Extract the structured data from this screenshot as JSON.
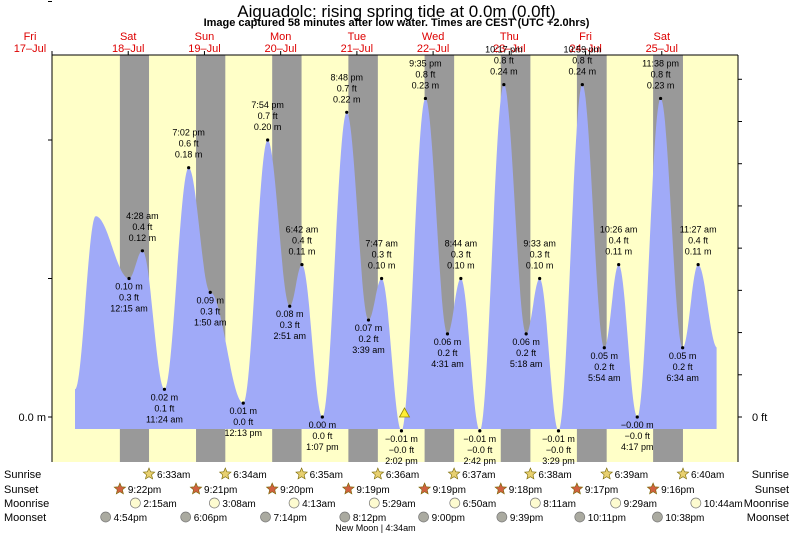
{
  "title": "Aiguadolc: rising  spring tide at 0.0m (0.0ft)",
  "subtitle": "Image captured 58 minutes after low water. Times are CEST (UTC +2.0hrs)",
  "colors": {
    "day": "#ffffc8",
    "night": "#999999",
    "water": "#a0aaf8",
    "day_label": "#dd0000",
    "sun_star": "#e8d070",
    "set_star": "#d06040"
  },
  "left_axis_label": "0.0 m",
  "right_axis_label": "0 ft",
  "days": [
    {
      "name": "Fri",
      "date": "17–Jul"
    },
    {
      "name": "Sat",
      "date": "18–Jul"
    },
    {
      "name": "Sun",
      "date": "19–Jul"
    },
    {
      "name": "Mon",
      "date": "20–Jul"
    },
    {
      "name": "Tue",
      "date": "21–Jul"
    },
    {
      "name": "Wed",
      "date": "22–Jul"
    },
    {
      "name": "Thu",
      "date": "23–Jul"
    },
    {
      "name": "Fri",
      "date": "24–Jul"
    },
    {
      "name": "Sat",
      "date": "25–Jul"
    }
  ],
  "chart_data": {
    "type": "area",
    "units": "m",
    "ylim": [
      -0.02,
      0.33
    ],
    "xlim_hours": [
      0,
      216
    ],
    "x_start": "17-Jul 00:00",
    "tides": [
      {
        "t": 24.25,
        "h": 0.1,
        "time": "12:15 am",
        "m": "0.10 m",
        "ft": "0.3 ft",
        "pos": "below"
      },
      {
        "t": 28.47,
        "h": 0.12,
        "time": "4:28 am",
        "m": "0.12 m",
        "ft": "0.4 ft",
        "pos": "above"
      },
      {
        "t": 35.4,
        "h": 0.02,
        "time": "11:24 am",
        "m": "0.02 m",
        "ft": "0.1 ft",
        "pos": "below"
      },
      {
        "t": 43.03,
        "h": 0.18,
        "time": "7:02 pm",
        "m": "0.18 m",
        "ft": "0.6 ft",
        "pos": "above"
      },
      {
        "t": 49.83,
        "h": 0.09,
        "time": "1:50 am",
        "m": "0.09 m",
        "ft": "0.3 ft",
        "pos": "below"
      },
      {
        "t": 60.22,
        "h": 0.01,
        "time": "12:13 pm",
        "m": "0.01 m",
        "ft": "0.0 ft",
        "pos": "below"
      },
      {
        "t": 67.9,
        "h": 0.2,
        "time": "7:54 pm",
        "m": "0.20 m",
        "ft": "0.7 ft",
        "pos": "above"
      },
      {
        "t": 74.85,
        "h": 0.08,
        "time": "2:51 am",
        "m": "0.08 m",
        "ft": "0.3 ft",
        "pos": "below"
      },
      {
        "t": 78.7,
        "h": 0.11,
        "time": "6:42 am",
        "m": "0.11 m",
        "ft": "0.4 ft",
        "pos": "above"
      },
      {
        "t": 85.12,
        "h": 0.0,
        "time": "1:07 pm",
        "m": "0.00 m",
        "ft": "0.0 ft",
        "pos": "below"
      },
      {
        "t": 92.8,
        "h": 0.22,
        "time": "8:48 pm",
        "m": "0.22 m",
        "ft": "0.7 ft",
        "pos": "above"
      },
      {
        "t": 99.65,
        "h": 0.07,
        "time": "3:39 am",
        "m": "0.07 m",
        "ft": "0.2 ft",
        "pos": "below"
      },
      {
        "t": 103.78,
        "h": 0.1,
        "time": "7:47 am",
        "m": "0.10 m",
        "ft": "0.3 ft",
        "pos": "above"
      },
      {
        "t": 110.03,
        "h": -0.01,
        "time": "2:02 pm",
        "m": "−0.01 m",
        "ft": "−0.0 ft",
        "pos": "below"
      },
      {
        "t": 117.58,
        "h": 0.23,
        "time": "9:35 pm",
        "m": "0.23 m",
        "ft": "0.8 ft",
        "pos": "above"
      },
      {
        "t": 124.52,
        "h": 0.06,
        "time": "4:31 am",
        "m": "0.06 m",
        "ft": "0.2 ft",
        "pos": "below"
      },
      {
        "t": 128.73,
        "h": 0.1,
        "time": "8:44 am",
        "m": "0.10 m",
        "ft": "0.3 ft",
        "pos": "above"
      },
      {
        "t": 134.7,
        "h": -0.01,
        "time": "2:42 pm",
        "m": "−0.01 m",
        "ft": "−0.0 ft",
        "pos": "below"
      },
      {
        "t": 142.28,
        "h": 0.24,
        "time": "10:17 pm",
        "m": "0.24 m",
        "ft": "0.8 ft",
        "pos": "above"
      },
      {
        "t": 149.3,
        "h": 0.06,
        "time": "5:18 am",
        "m": "0.06 m",
        "ft": "0.2 ft",
        "pos": "below"
      },
      {
        "t": 153.55,
        "h": 0.1,
        "time": "9:33 am",
        "m": "0.10 m",
        "ft": "0.3 ft",
        "pos": "above"
      },
      {
        "t": 159.48,
        "h": -0.01,
        "time": "3:29 pm",
        "m": "−0.01 m",
        "ft": "−0.0 ft",
        "pos": "below"
      },
      {
        "t": 166.98,
        "h": 0.24,
        "time": "10:59 pm",
        "m": "0.24 m",
        "ft": "0.8 ft",
        "pos": "above"
      },
      {
        "t": 173.9,
        "h": 0.05,
        "time": "5:54 am",
        "m": "0.05 m",
        "ft": "0.2 ft",
        "pos": "below"
      },
      {
        "t": 178.43,
        "h": 0.11,
        "time": "10:26 am",
        "m": "0.11 m",
        "ft": "0.4 ft",
        "pos": "above"
      },
      {
        "t": 184.28,
        "h": -0.0,
        "time": "4:17 pm",
        "m": "−0.00 m",
        "ft": "−0.0 ft",
        "pos": "below"
      },
      {
        "t": 191.63,
        "h": 0.23,
        "time": "11:38 pm",
        "m": "0.23 m",
        "ft": "0.8 ft",
        "pos": "above"
      },
      {
        "t": 198.57,
        "h": 0.05,
        "time": "6:34 am",
        "m": "0.05 m",
        "ft": "0.2 ft",
        "pos": "below"
      },
      {
        "t": 203.45,
        "h": 0.11,
        "time": "11:27 am",
        "m": "0.11 m",
        "ft": "0.4 ft",
        "pos": "above"
      }
    ],
    "now_t": 110.99
  },
  "sun_moon": {
    "labels": {
      "sunrise": "Sunrise",
      "sunset": "Sunset",
      "moonrise": "Moonrise",
      "moonset": "Moonset"
    },
    "sunrise": [
      {
        "t": 30.55,
        "text": "6:33am"
      },
      {
        "t": 54.57,
        "text": "6:34am"
      },
      {
        "t": 78.58,
        "text": "6:35am"
      },
      {
        "t": 102.6,
        "text": "6:36am"
      },
      {
        "t": 126.62,
        "text": "6:37am"
      },
      {
        "t": 150.63,
        "text": "6:38am"
      },
      {
        "t": 174.65,
        "text": "6:39am"
      },
      {
        "t": 198.67,
        "text": "6:40am"
      }
    ],
    "sunset": [
      {
        "t": 21.37,
        "text": "9:22pm"
      },
      {
        "t": 45.35,
        "text": "9:21pm"
      },
      {
        "t": 69.33,
        "text": "9:20pm"
      },
      {
        "t": 93.32,
        "text": "9:19pm"
      },
      {
        "t": 117.32,
        "text": "9:19pm"
      },
      {
        "t": 141.3,
        "text": "9:18pm"
      },
      {
        "t": 165.28,
        "text": "9:17pm"
      },
      {
        "t": 189.27,
        "text": "9:16pm"
      }
    ],
    "moonrise": [
      {
        "t": 26.25,
        "text": "2:15am"
      },
      {
        "t": 51.13,
        "text": "3:08am"
      },
      {
        "t": 76.22,
        "text": "4:13am"
      },
      {
        "t": 101.48,
        "text": "5:29am"
      },
      {
        "t": 126.83,
        "text": "6:50am"
      },
      {
        "t": 152.18,
        "text": "8:11am"
      },
      {
        "t": 177.48,
        "text": "9:29am"
      },
      {
        "t": 202.73,
        "text": "10:44am"
      }
    ],
    "moonset": [
      {
        "t": 16.9,
        "text": "4:54pm"
      },
      {
        "t": 42.1,
        "text": "6:06pm"
      },
      {
        "t": 67.23,
        "text": "7:14pm"
      },
      {
        "t": 92.2,
        "text": "8:12pm"
      },
      {
        "t": 117.0,
        "text": "9:00pm"
      },
      {
        "t": 141.65,
        "text": "9:39pm"
      },
      {
        "t": 166.18,
        "text": "10:11pm"
      },
      {
        "t": 190.63,
        "text": "10:38pm"
      }
    ],
    "moon_phase": {
      "t": 100.57,
      "text": "New Moon | 4:34am"
    }
  }
}
